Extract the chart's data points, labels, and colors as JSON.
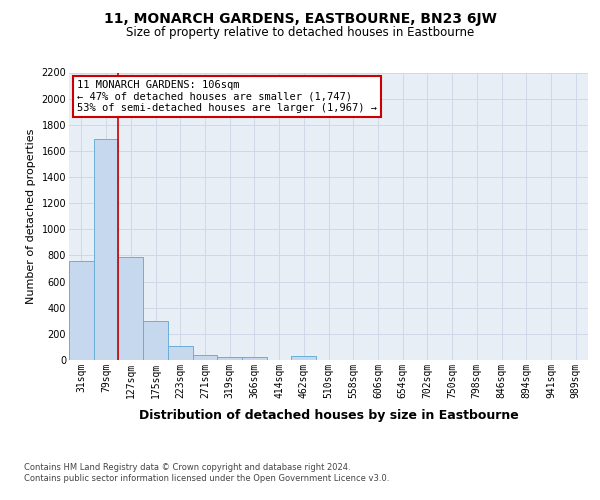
{
  "title": "11, MONARCH GARDENS, EASTBOURNE, BN23 6JW",
  "subtitle": "Size of property relative to detached houses in Eastbourne",
  "xlabel": "Distribution of detached houses by size in Eastbourne",
  "ylabel": "Number of detached properties",
  "bar_labels": [
    "31sqm",
    "79sqm",
    "127sqm",
    "175sqm",
    "223sqm",
    "271sqm",
    "319sqm",
    "366sqm",
    "414sqm",
    "462sqm",
    "510sqm",
    "558sqm",
    "606sqm",
    "654sqm",
    "702sqm",
    "750sqm",
    "798sqm",
    "846sqm",
    "894sqm",
    "941sqm",
    "989sqm"
  ],
  "bar_values": [
    760,
    1690,
    790,
    300,
    110,
    40,
    20,
    20,
    0,
    30,
    0,
    0,
    0,
    0,
    0,
    0,
    0,
    0,
    0,
    0,
    0
  ],
  "bar_color": "#c5d8ed",
  "bar_edge_color": "#6baed6",
  "grid_color": "#d0d8e8",
  "background_color": "#e8eef5",
  "annotation_line1": "11 MONARCH GARDENS: 106sqm",
  "annotation_line2": "← 47% of detached houses are smaller (1,747)",
  "annotation_line3": "53% of semi-detached houses are larger (1,967) →",
  "annotation_box_color": "#ffffff",
  "annotation_box_edge_color": "#cc0000",
  "red_line_x": 1.47,
  "ylim": [
    0,
    2200
  ],
  "yticks": [
    0,
    200,
    400,
    600,
    800,
    1000,
    1200,
    1400,
    1600,
    1800,
    2000,
    2200
  ],
  "footer_line1": "Contains HM Land Registry data © Crown copyright and database right 2024.",
  "footer_line2": "Contains public sector information licensed under the Open Government Licence v3.0.",
  "title_fontsize": 10,
  "subtitle_fontsize": 8.5,
  "xlabel_fontsize": 9,
  "ylabel_fontsize": 8,
  "tick_fontsize": 7,
  "annotation_fontsize": 7.5,
  "footer_fontsize": 6
}
